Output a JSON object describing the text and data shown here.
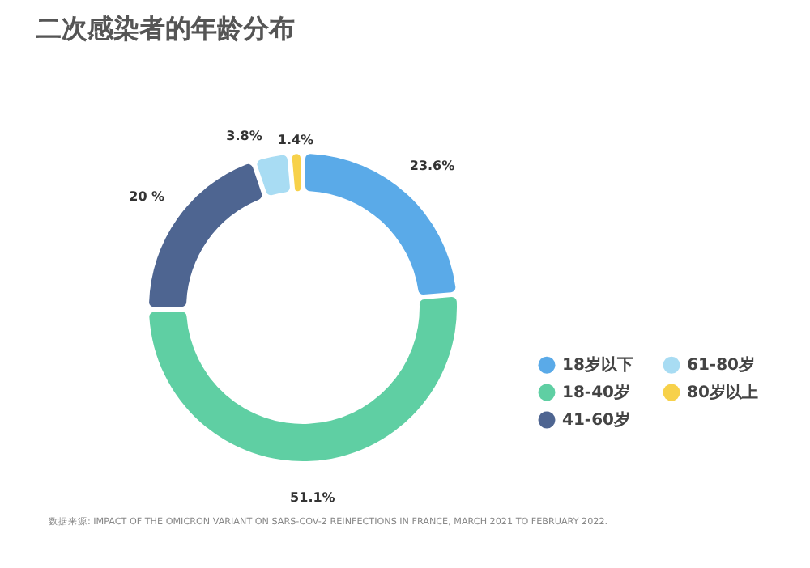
{
  "chart_data": {
    "type": "donut",
    "title": "二次感染者的年龄分布",
    "categories": [
      "18岁以下",
      "18-40岁",
      "41-60岁",
      "61-80岁",
      "80岁以上"
    ],
    "values": [
      23.6,
      51.1,
      20,
      3.8,
      1.4
    ],
    "value_labels": [
      "23.6%",
      "51.1%",
      "20 %",
      "3.8%",
      "1.4%"
    ],
    "colors": [
      "#5aaae8",
      "#5fcfa3",
      "#4e6591",
      "#a8dcf3",
      "#f7d14a"
    ],
    "legend": "bottom right",
    "annotations": [
      "数据来源: IMPACT OF THE OMICRON VARIANT ON SARS-COV-2 REINFECTIONS IN FRANCE, MARCH 2021 TO FEBRUARY 2022."
    ]
  }
}
